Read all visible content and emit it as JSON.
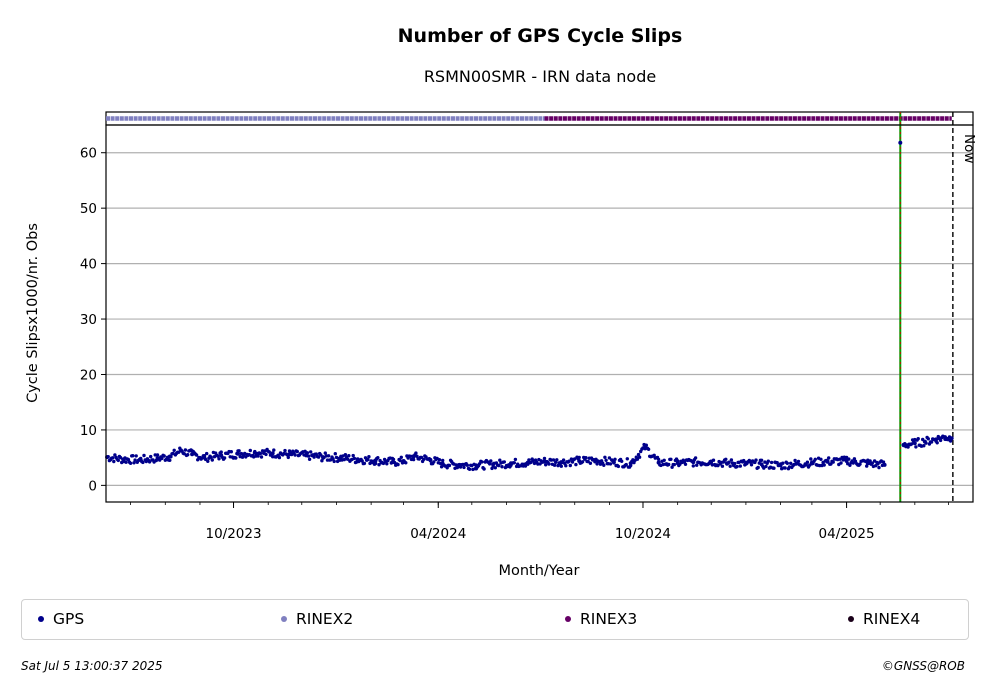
{
  "chart_data": {
    "type": "scatter",
    "title": "Number of GPS Cycle Slips",
    "subtitle": "RSMN00SMR - IRN data node",
    "xlabel": "Month/Year",
    "ylabel": "Cycle Slipsx1000/nr. Obs",
    "ylim": [
      -3,
      65
    ],
    "xlim": [
      "2023-06-09",
      "2025-07-23"
    ],
    "x_ticks": [
      "10/2023",
      "04/2024",
      "10/2024",
      "04/2025"
    ],
    "x_tick_dates": [
      "2023-10-01",
      "2024-04-01",
      "2024-10-01",
      "2025-04-01"
    ],
    "y_ticks": [
      0,
      10,
      20,
      30,
      40,
      50,
      60
    ],
    "grid": "horizontal",
    "legend_position": "bottom",
    "series": [
      {
        "name": "GPS",
        "color": "#00008b",
        "points": [
          [
            "2023-06-10",
            5.1
          ],
          [
            "2023-06-25",
            4.7
          ],
          [
            "2023-07-10",
            4.6
          ],
          [
            "2023-07-25",
            4.9
          ],
          [
            "2023-08-05",
            5.2
          ],
          [
            "2023-08-15",
            6.3
          ],
          [
            "2023-08-25",
            5.6
          ],
          [
            "2023-09-05",
            5.0
          ],
          [
            "2023-09-20",
            5.4
          ],
          [
            "2023-10-05",
            5.7
          ],
          [
            "2023-10-20",
            5.9
          ],
          [
            "2023-11-05",
            5.8
          ],
          [
            "2023-11-20",
            5.6
          ],
          [
            "2023-12-05",
            5.4
          ],
          [
            "2023-12-20",
            5.1
          ],
          [
            "2024-01-05",
            5.0
          ],
          [
            "2024-01-20",
            4.7
          ],
          [
            "2024-02-05",
            4.5
          ],
          [
            "2024-02-20",
            4.2
          ],
          [
            "2024-03-01",
            4.4
          ],
          [
            "2024-03-10",
            5.2
          ],
          [
            "2024-03-25",
            4.6
          ],
          [
            "2024-04-05",
            3.9
          ],
          [
            "2024-04-20",
            3.7
          ],
          [
            "2024-05-05",
            3.6
          ],
          [
            "2024-05-20",
            3.8
          ],
          [
            "2024-06-05",
            4.0
          ],
          [
            "2024-06-20",
            4.1
          ],
          [
            "2024-07-05",
            4.3
          ],
          [
            "2024-07-20",
            4.2
          ],
          [
            "2024-08-05",
            4.4
          ],
          [
            "2024-08-20",
            4.5
          ],
          [
            "2024-09-05",
            4.2
          ],
          [
            "2024-09-20",
            4.0
          ],
          [
            "2024-10-03",
            6.9
          ],
          [
            "2024-10-15",
            4.1
          ],
          [
            "2024-11-01",
            4.0
          ],
          [
            "2024-11-15",
            4.2
          ],
          [
            "2024-12-01",
            4.3
          ],
          [
            "2024-12-15",
            4.0
          ],
          [
            "2025-01-01",
            3.9
          ],
          [
            "2025-01-15",
            3.8
          ],
          [
            "2025-02-01",
            3.6
          ],
          [
            "2025-02-15",
            3.9
          ],
          [
            "2025-03-01",
            4.1
          ],
          [
            "2025-03-15",
            4.3
          ],
          [
            "2025-04-01",
            4.4
          ],
          [
            "2025-04-20",
            4.0
          ],
          [
            "2025-05-05",
            3.7
          ],
          [
            "2025-05-19",
            61.8
          ],
          [
            "2025-05-22",
            7.3
          ],
          [
            "2025-06-01",
            7.6
          ],
          [
            "2025-06-10",
            7.9
          ],
          [
            "2025-06-20",
            8.3
          ],
          [
            "2025-06-28",
            8.7
          ],
          [
            "2025-07-04",
            8.5
          ]
        ]
      }
    ],
    "availability_bar": [
      {
        "name": "RINEX2",
        "color": "#8080c0",
        "start": "2023-06-09",
        "end": "2024-07-05"
      },
      {
        "name": "RINEX3",
        "color": "#660066",
        "start": "2024-07-05",
        "end": "2025-07-04"
      }
    ],
    "events": [
      {
        "date": "2025-05-19",
        "style": "green-red-dashed"
      },
      {
        "date": "2025-07-05",
        "label": "Now",
        "style": "black-dashed"
      }
    ],
    "legend": [
      {
        "name": "GPS",
        "color": "#00008b"
      },
      {
        "name": "RINEX2",
        "color": "#8080c0"
      },
      {
        "name": "RINEX3",
        "color": "#660066"
      },
      {
        "name": "RINEX4",
        "color": "#1a0019"
      }
    ]
  },
  "footer": {
    "timestamp": "Sat Jul  5 13:00:37 2025",
    "copyright": "©GNSS@ROB"
  }
}
